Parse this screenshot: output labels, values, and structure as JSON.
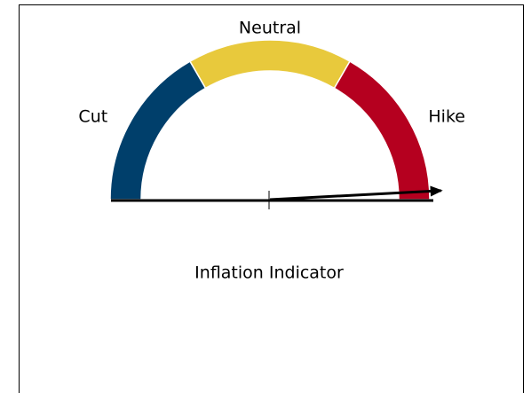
{
  "chart_data": {
    "type": "gauge",
    "title": "Inflation Indicator",
    "categories": [
      "Cut",
      "Neutral",
      "Hike"
    ],
    "values": [
      1,
      1,
      1
    ],
    "colors": [
      "#003f6b",
      "#e8c93c",
      "#b5001f"
    ],
    "needle": 2.95
  }
}
